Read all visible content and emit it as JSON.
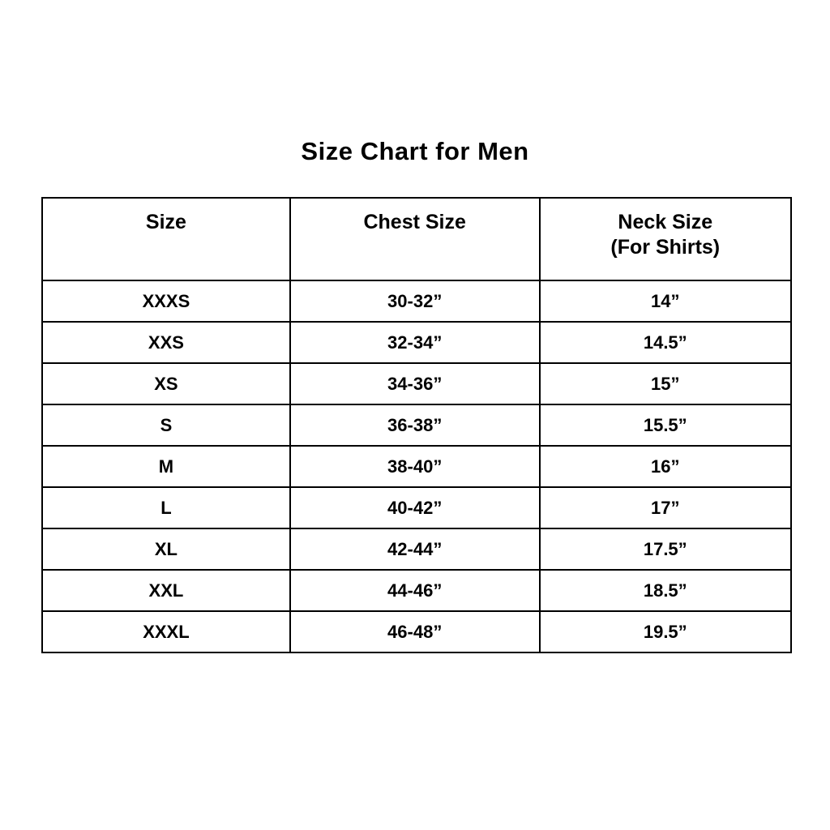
{
  "title": "Size Chart for Men",
  "table": {
    "headers": [
      "Size",
      "Chest Size",
      "Neck Size\n(For Shirts)"
    ],
    "rows": [
      [
        "XXXS",
        "30-32”",
        "14”"
      ],
      [
        "XXS",
        "32-34”",
        "14.5”"
      ],
      [
        "XS",
        "34-36”",
        "15”"
      ],
      [
        "S",
        "36-38”",
        "15.5”"
      ],
      [
        "M",
        "38-40”",
        "16”"
      ],
      [
        "L",
        "40-42”",
        "17”"
      ],
      [
        "XL",
        "42-44”",
        "17.5”"
      ],
      [
        "XXL",
        "44-46”",
        "18.5”"
      ],
      [
        "XXXL",
        "46-48”",
        "19.5”"
      ]
    ]
  },
  "colors": {
    "background": "#ffffff",
    "text": "#000000",
    "border": "#000000"
  },
  "chart_data": {
    "type": "table",
    "title": "Size Chart for Men",
    "columns": [
      "Size",
      "Chest Size",
      "Neck Size (For Shirts)"
    ],
    "rows": [
      {
        "size": "XXXS",
        "chest_size": "30-32”",
        "neck_size": "14”"
      },
      {
        "size": "XXS",
        "chest_size": "32-34”",
        "neck_size": "14.5”"
      },
      {
        "size": "XS",
        "chest_size": "34-36”",
        "neck_size": "15”"
      },
      {
        "size": "S",
        "chest_size": "36-38”",
        "neck_size": "15.5”"
      },
      {
        "size": "M",
        "chest_size": "38-40”",
        "neck_size": "16”"
      },
      {
        "size": "L",
        "chest_size": "40-42”",
        "neck_size": "17”"
      },
      {
        "size": "XL",
        "chest_size": "42-44”",
        "neck_size": "17.5”"
      },
      {
        "size": "XXL",
        "chest_size": "44-46”",
        "neck_size": "18.5”"
      },
      {
        "size": "XXXL",
        "chest_size": "46-48”",
        "neck_size": "19.5”"
      }
    ]
  }
}
